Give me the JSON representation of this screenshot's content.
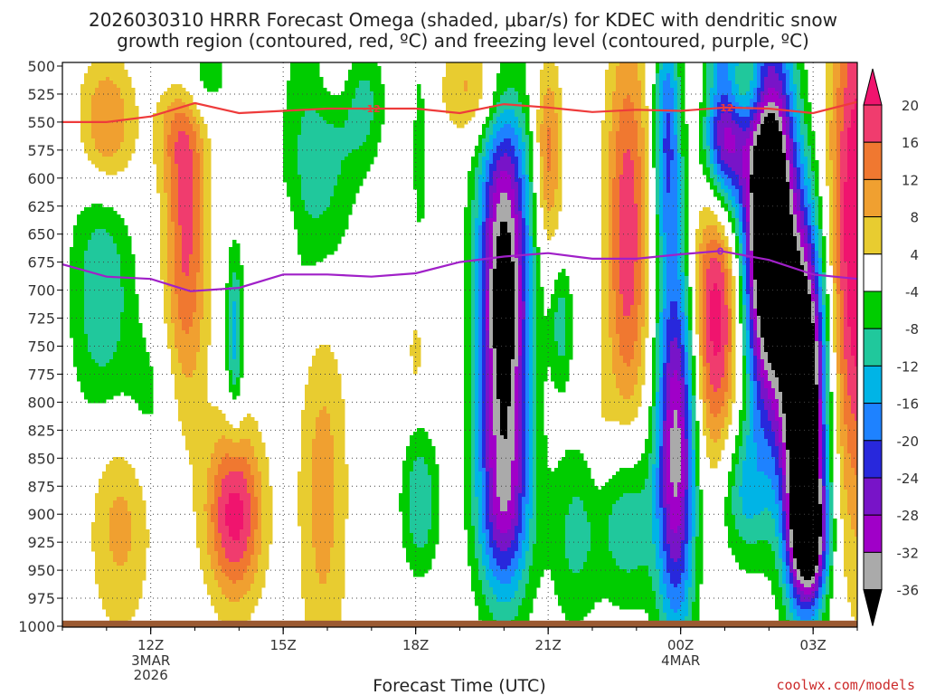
{
  "chart_data": {
    "type": "heatmap",
    "title": {
      "line1": "2026030310 HRRR Forecast Omega (shaded, μbar/s) for KDEC with dendritic snow",
      "line2": "growth region (contoured, red, ºC) and freezing level (contoured, purple, ºC)"
    },
    "xlabel": "Forecast Time (UTC)",
    "ylabel": "",
    "credit": "coolwx.com/models",
    "x_range_hours": [
      10,
      28
    ],
    "y_range_mb": [
      500,
      1000
    ],
    "y_axis": {
      "scale": "linear-pressure",
      "ticks": [
        500,
        525,
        550,
        575,
        600,
        625,
        650,
        675,
        700,
        725,
        750,
        775,
        800,
        825,
        850,
        875,
        900,
        925,
        950,
        975,
        1000
      ],
      "tick_labels": [
        "500",
        "525",
        "550",
        "575",
        "600",
        "625",
        "650",
        "675",
        "700",
        "725",
        "750",
        "775",
        "800",
        "825",
        "850",
        "875",
        "900",
        "925",
        "950",
        "975",
        "1000"
      ]
    },
    "x_axis": {
      "ticks_hours": [
        12,
        15,
        18,
        21,
        24,
        27
      ],
      "tick_labels": [
        "12Z",
        "15Z",
        "18Z",
        "21Z",
        "00Z",
        "03Z"
      ],
      "sub_labels": [
        {
          "hour": 12,
          "lines": [
            "3MAR",
            "2026"
          ]
        },
        {
          "hour": 24,
          "lines": [
            "4MAR"
          ]
        }
      ],
      "minor_every_hours": 1
    },
    "colorbar": {
      "labels": [
        "20",
        "16",
        "12",
        "8",
        "4",
        "-4",
        "-8",
        "-12",
        "-16",
        "-20",
        "-24",
        "-28",
        "-32",
        "-36"
      ],
      "bins": [
        {
          "range": [
            16,
            20
          ],
          "color": "#f03c6e"
        },
        {
          "range": [
            12,
            16
          ],
          "color": "#f07830"
        },
        {
          "range": [
            8,
            12
          ],
          "color": "#f0a030"
        },
        {
          "range": [
            4,
            8
          ],
          "color": "#e8cc30"
        },
        {
          "range": [
            -4,
            4
          ],
          "color": "#ffffff"
        },
        {
          "range": [
            -8,
            -4
          ],
          "color": "#00cc00"
        },
        {
          "range": [
            -12,
            -8
          ],
          "color": "#20c89c"
        },
        {
          "range": [
            -16,
            -12
          ],
          "color": "#00b4e6"
        },
        {
          "range": [
            -20,
            -16
          ],
          "color": "#1e82ff"
        },
        {
          "range": [
            -24,
            -20
          ],
          "color": "#2828dc"
        },
        {
          "range": [
            -28,
            -24
          ],
          "color": "#7814c8"
        },
        {
          "range": [
            -32,
            -28
          ],
          "color": "#a000c8"
        },
        {
          "range": [
            -36,
            -32
          ],
          "color": "#aaaaaa"
        }
      ],
      "top_arrow_color": "#f0146e",
      "bottom_arrow_color": "#000000"
    },
    "omega_centers": [
      {
        "t": 11.0,
        "p": 555,
        "sx": 0.45,
        "sy": 45,
        "v": 15
      },
      {
        "t": 11.3,
        "p": 900,
        "sx": 0.5,
        "sy": 75,
        "v": 10
      },
      {
        "t": 12.8,
        "p": 650,
        "sx": 0.35,
        "sy": 110,
        "v": 17
      },
      {
        "t": 12.6,
        "p": 540,
        "sx": 0.4,
        "sy": 40,
        "v": 9
      },
      {
        "t": 13.9,
        "p": 900,
        "sx": 0.45,
        "sy": 55,
        "v": 22
      },
      {
        "t": 15.1,
        "p": 665,
        "sx": 0.12,
        "sy": 25,
        "v": 6
      },
      {
        "t": 15.9,
        "p": 870,
        "sx": 0.4,
        "sy": 140,
        "v": 10
      },
      {
        "t": 16.2,
        "p": 510,
        "sx": 0.45,
        "sy": 30,
        "v": 7
      },
      {
        "t": 18.0,
        "p": 755,
        "sx": 0.12,
        "sy": 25,
        "v": 6
      },
      {
        "t": 19.5,
        "p": 520,
        "sx": 0.6,
        "sy": 35,
        "v": 12
      },
      {
        "t": 21.0,
        "p": 580,
        "sx": 0.22,
        "sy": 60,
        "v": 14
      },
      {
        "t": 22.2,
        "p": 830,
        "sx": 0.2,
        "sy": 40,
        "v": 4
      },
      {
        "t": 22.8,
        "p": 650,
        "sx": 0.35,
        "sy": 130,
        "v": 19
      },
      {
        "t": 24.8,
        "p": 720,
        "sx": 0.38,
        "sy": 95,
        "v": 23
      },
      {
        "t": 25.2,
        "p": 520,
        "sx": 0.5,
        "sy": 30,
        "v": 22
      },
      {
        "t": 28.0,
        "p": 650,
        "sx": 0.45,
        "sy": 180,
        "v": 25
      },
      {
        "t": 10.9,
        "p": 700,
        "sx": 0.5,
        "sy": 90,
        "v": -12
      },
      {
        "t": 11.9,
        "p": 800,
        "sx": 0.45,
        "sy": 50,
        "v": -6
      },
      {
        "t": 12.9,
        "p": 510,
        "sx": 0.5,
        "sy": 30,
        "v": -13
      },
      {
        "t": 13.9,
        "p": 740,
        "sx": 0.14,
        "sy": 55,
        "v": -14
      },
      {
        "t": 15.8,
        "p": 580,
        "sx": 0.55,
        "sy": 100,
        "v": -12
      },
      {
        "t": 16.8,
        "p": 530,
        "sx": 0.35,
        "sy": 40,
        "v": -10
      },
      {
        "t": 18.1,
        "p": 570,
        "sx": 0.15,
        "sy": 80,
        "v": -6
      },
      {
        "t": 18.1,
        "p": 890,
        "sx": 0.3,
        "sy": 45,
        "v": -12
      },
      {
        "t": 20.0,
        "p": 715,
        "sx": 0.42,
        "sy": 140,
        "v": -42
      },
      {
        "t": 20.0,
        "p": 900,
        "sx": 0.45,
        "sy": 55,
        "v": -14
      },
      {
        "t": 21.3,
        "p": 730,
        "sx": 0.18,
        "sy": 40,
        "v": -10
      },
      {
        "t": 21.6,
        "p": 920,
        "sx": 0.4,
        "sy": 60,
        "v": -9
      },
      {
        "t": 22.8,
        "p": 905,
        "sx": 0.45,
        "sy": 55,
        "v": -13
      },
      {
        "t": 23.9,
        "p": 840,
        "sx": 0.32,
        "sy": 120,
        "v": -34
      },
      {
        "t": 23.7,
        "p": 560,
        "sx": 0.22,
        "sy": 80,
        "v": -20
      },
      {
        "t": 25.4,
        "p": 880,
        "sx": 0.4,
        "sy": 45,
        "v": -12
      },
      {
        "t": 25.0,
        "p": 540,
        "sx": 0.35,
        "sy": 60,
        "v": -42
      },
      {
        "t": 26.0,
        "p": 640,
        "sx": 0.4,
        "sy": 120,
        "v": -55
      },
      {
        "t": 26.8,
        "p": 800,
        "sx": 0.35,
        "sy": 110,
        "v": -52
      },
      {
        "t": 26.9,
        "p": 920,
        "sx": 0.3,
        "sy": 40,
        "v": -30
      }
    ],
    "dgz_contour": {
      "label": "-12",
      "color": "#ee3b3b",
      "points": [
        [
          10.0,
          550
        ],
        [
          11.0,
          550
        ],
        [
          12.0,
          545
        ],
        [
          13.0,
          533
        ],
        [
          14.0,
          542
        ],
        [
          15.0,
          540
        ],
        [
          16.0,
          538
        ],
        [
          17.0,
          538
        ],
        [
          18.0,
          538
        ],
        [
          19.0,
          542
        ],
        [
          20.0,
          534
        ],
        [
          21.0,
          537
        ],
        [
          22.0,
          541
        ],
        [
          23.0,
          539
        ],
        [
          24.0,
          540
        ],
        [
          25.0,
          537
        ],
        [
          26.0,
          538
        ],
        [
          27.0,
          542
        ],
        [
          28.0,
          532
        ]
      ],
      "label_positions_hours": [
        17.0,
        25.0
      ]
    },
    "freezing_contour": {
      "label": "0",
      "color": "#a020c8",
      "points": [
        [
          10.0,
          677
        ],
        [
          11.0,
          688
        ],
        [
          12.0,
          690
        ],
        [
          12.9,
          701
        ],
        [
          14.0,
          698
        ],
        [
          15.0,
          686
        ],
        [
          16.0,
          686
        ],
        [
          17.0,
          688
        ],
        [
          18.0,
          685
        ],
        [
          19.0,
          675
        ],
        [
          20.0,
          670
        ],
        [
          21.0,
          667
        ],
        [
          22.0,
          672
        ],
        [
          23.0,
          672
        ],
        [
          24.0,
          668
        ],
        [
          24.9,
          665
        ],
        [
          26.0,
          673
        ],
        [
          27.0,
          686
        ],
        [
          28.0,
          690
        ]
      ],
      "label_positions_hours": [
        24.9
      ]
    },
    "ground": {
      "p_top": 995,
      "color": "#9b5a32"
    }
  }
}
